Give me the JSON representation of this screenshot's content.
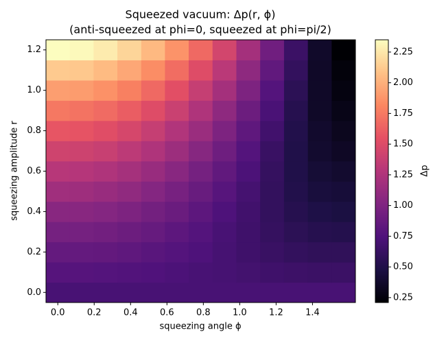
{
  "chart_data": {
    "type": "heatmap",
    "title": "Squeezed vacuum: Δp(r, ϕ)",
    "subtitle": "(anti-squeezed at phi=0, squeezed at phi=pi/2)",
    "x_label": "squeezing angle ϕ",
    "y_label": "squeezing amplitude r",
    "colorbar_label": "Δp",
    "colormap": "magma",
    "x": [
      0,
      0.131,
      0.262,
      0.393,
      0.524,
      0.654,
      0.785,
      0.916,
      1.047,
      1.178,
      1.309,
      1.44,
      1.571
    ],
    "y": [
      0,
      0.1,
      0.2,
      0.3,
      0.4,
      0.5,
      0.6,
      0.7,
      0.8,
      0.9,
      1.0,
      1.1,
      1.2
    ],
    "z": [
      [
        0.71,
        0.71,
        0.71,
        0.71,
        0.71,
        0.71,
        0.71,
        0.71,
        0.71,
        0.71,
        0.71,
        0.71,
        0.71
      ],
      [
        0.78,
        0.78,
        0.77,
        0.76,
        0.75,
        0.73,
        0.71,
        0.7,
        0.68,
        0.66,
        0.65,
        0.64,
        0.64
      ],
      [
        0.86,
        0.86,
        0.85,
        0.83,
        0.8,
        0.77,
        0.74,
        0.7,
        0.66,
        0.63,
        0.6,
        0.58,
        0.58
      ],
      [
        0.95,
        0.95,
        0.93,
        0.9,
        0.87,
        0.82,
        0.77,
        0.71,
        0.66,
        0.61,
        0.56,
        0.53,
        0.52
      ],
      [
        1.05,
        1.05,
        1.03,
        0.99,
        0.94,
        0.89,
        0.82,
        0.74,
        0.67,
        0.6,
        0.53,
        0.49,
        0.47
      ],
      [
        1.17,
        1.16,
        1.13,
        1.09,
        1.03,
        0.96,
        0.88,
        0.79,
        0.69,
        0.6,
        0.51,
        0.45,
        0.43
      ],
      [
        1.29,
        1.28,
        1.25,
        1.2,
        1.13,
        1.05,
        0.95,
        0.84,
        0.73,
        0.61,
        0.5,
        0.42,
        0.39
      ],
      [
        1.42,
        1.41,
        1.38,
        1.32,
        1.25,
        1.15,
        1.04,
        0.91,
        0.77,
        0.63,
        0.5,
        0.39,
        0.35
      ],
      [
        1.57,
        1.56,
        1.52,
        1.46,
        1.37,
        1.26,
        1.14,
        0.99,
        0.83,
        0.67,
        0.51,
        0.38,
        0.32
      ],
      [
        1.74,
        1.72,
        1.68,
        1.61,
        1.51,
        1.39,
        1.25,
        1.08,
        0.9,
        0.72,
        0.53,
        0.36,
        0.29
      ],
      [
        1.92,
        1.91,
        1.86,
        1.78,
        1.67,
        1.53,
        1.37,
        1.19,
        0.99,
        0.77,
        0.56,
        0.36,
        0.26
      ],
      [
        2.12,
        2.11,
        2.05,
        1.96,
        1.84,
        1.69,
        1.51,
        1.31,
        1.08,
        0.84,
        0.6,
        0.36,
        0.24
      ],
      [
        2.35,
        2.33,
        2.27,
        2.17,
        2.04,
        1.87,
        1.67,
        1.44,
        1.19,
        0.92,
        0.64,
        0.37,
        0.21
      ]
    ],
    "xlim": [
      -0.065,
      1.636
    ],
    "ylim": [
      -0.05,
      1.25
    ],
    "clim": [
      0.21,
      2.35
    ],
    "xticks": [
      {
        "value": 0,
        "label": "0.0"
      },
      {
        "value": 0.2,
        "label": "0.2"
      },
      {
        "value": 0.4,
        "label": "0.4"
      },
      {
        "value": 0.6,
        "label": "0.6"
      },
      {
        "value": 0.8,
        "label": "0.8"
      },
      {
        "value": 1,
        "label": "1.0"
      },
      {
        "value": 1.2,
        "label": "1.2"
      },
      {
        "value": 1.4,
        "label": "1.4"
      }
    ],
    "yticks": [
      {
        "value": 0,
        "label": "0.0"
      },
      {
        "value": 0.2,
        "label": "0.2"
      },
      {
        "value": 0.4,
        "label": "0.4"
      },
      {
        "value": 0.6,
        "label": "0.6"
      },
      {
        "value": 0.8,
        "label": "0.8"
      },
      {
        "value": 1,
        "label": "1.0"
      },
      {
        "value": 1.2,
        "label": "1.2"
      }
    ],
    "cticks": [
      {
        "value": 0.25,
        "label": "0.25"
      },
      {
        "value": 0.5,
        "label": "0.50"
      },
      {
        "value": 0.75,
        "label": "0.75"
      },
      {
        "value": 1,
        "label": "1.00"
      },
      {
        "value": 1.25,
        "label": "1.25"
      },
      {
        "value": 1.5,
        "label": "1.50"
      },
      {
        "value": 1.75,
        "label": "1.75"
      },
      {
        "value": 2,
        "label": "2.00"
      },
      {
        "value": 2.25,
        "label": "2.25"
      }
    ]
  }
}
